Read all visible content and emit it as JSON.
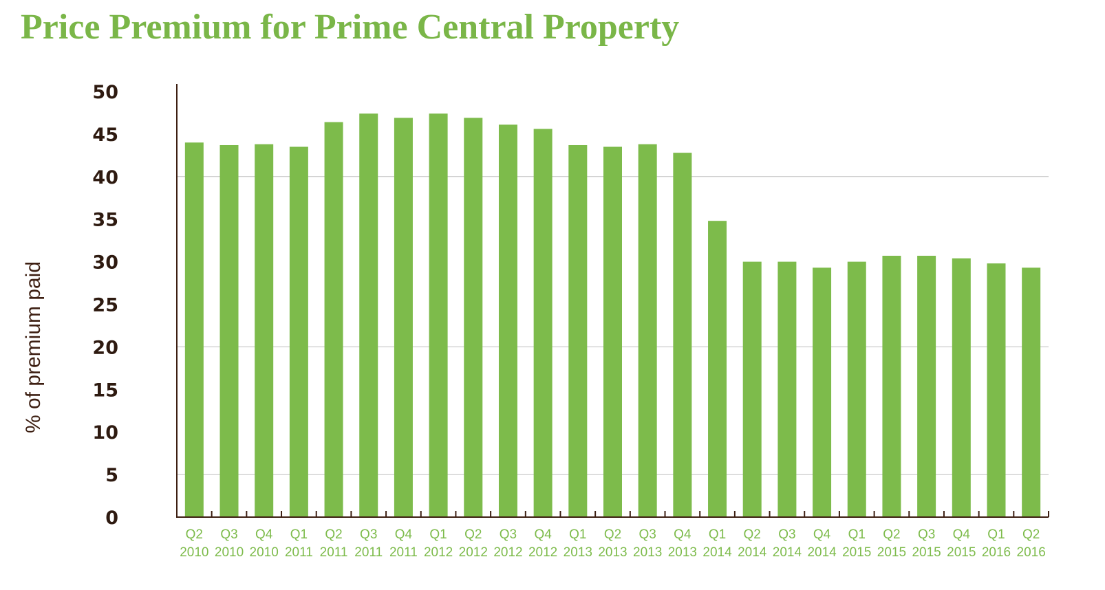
{
  "title": "Price Premium for Prime Central Property",
  "colors": {
    "title": "#7ab648",
    "bar": "#7dbb4b",
    "axis": "#3d1f12",
    "ytick": "#2e1a10",
    "xtick": "#7dbb4b",
    "grid": "#bdbdbd"
  },
  "chart_data": {
    "type": "bar",
    "title": "Price Premium for Prime Central Property",
    "xlabel": "",
    "ylabel": "% of premium paid",
    "ylim": [
      0,
      50
    ],
    "yticks": [
      0,
      5,
      10,
      15,
      20,
      25,
      30,
      35,
      40,
      45,
      50
    ],
    "grid": "horizontal at 5, 20 and 40",
    "categories": [
      [
        "Q2",
        "2010"
      ],
      [
        "Q3",
        "2010"
      ],
      [
        "Q4",
        "2010"
      ],
      [
        "Q1",
        "2011"
      ],
      [
        "Q2",
        "2011"
      ],
      [
        "Q3",
        "2011"
      ],
      [
        "Q4",
        "2011"
      ],
      [
        "Q1",
        "2012"
      ],
      [
        "Q2",
        "2012"
      ],
      [
        "Q3",
        "2012"
      ],
      [
        "Q4",
        "2012"
      ],
      [
        "Q1",
        "2013"
      ],
      [
        "Q2",
        "2013"
      ],
      [
        "Q3",
        "2013"
      ],
      [
        "Q4",
        "2013"
      ],
      [
        "Q1",
        "2014"
      ],
      [
        "Q2",
        "2014"
      ],
      [
        "Q3",
        "2014"
      ],
      [
        "Q4",
        "2014"
      ],
      [
        "Q1",
        "2015"
      ],
      [
        "Q2",
        "2015"
      ],
      [
        "Q3",
        "2015"
      ],
      [
        "Q4",
        "2015"
      ],
      [
        "Q1",
        "2016"
      ],
      [
        "Q2",
        "2016"
      ]
    ],
    "values": [
      44.0,
      43.7,
      43.8,
      43.5,
      46.4,
      47.4,
      46.9,
      47.4,
      46.9,
      46.1,
      45.6,
      43.7,
      43.5,
      43.8,
      42.8,
      34.8,
      30.0,
      30.0,
      29.3,
      30.0,
      30.7,
      30.7,
      30.4,
      29.8,
      29.3
    ]
  }
}
